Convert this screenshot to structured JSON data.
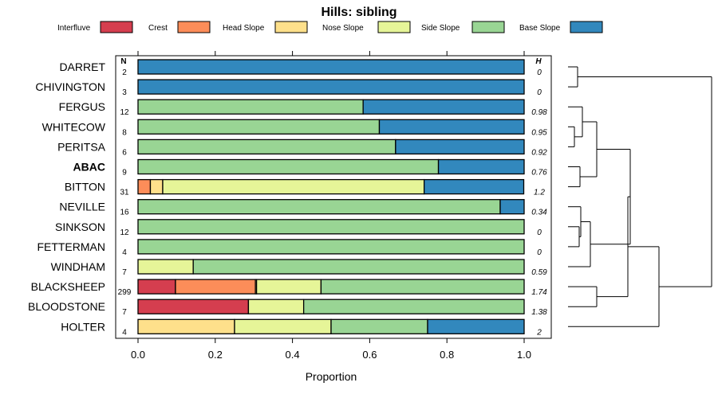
{
  "chart_data": {
    "type": "bar",
    "stacked": true,
    "orientation": "horizontal",
    "title": "Hills: sibling",
    "xlabel": "Proportion",
    "xlim": [
      0,
      1
    ],
    "xticks": [
      "0.0",
      "0.2",
      "0.4",
      "0.6",
      "0.8",
      "1.0"
    ],
    "n_header": "N",
    "h_header": "H",
    "legend_position": "top",
    "legend": [
      {
        "name": "Interfluve",
        "color": "#d53e4f"
      },
      {
        "name": "Crest",
        "color": "#fc8d59"
      },
      {
        "name": "Head Slope",
        "color": "#fee08b"
      },
      {
        "name": "Nose Slope",
        "color": "#e6f598"
      },
      {
        "name": "Side Slope",
        "color": "#99d594"
      },
      {
        "name": "Base Slope",
        "color": "#3288bd"
      }
    ],
    "rows": [
      {
        "name": "DARRET",
        "n": "2",
        "h": "0",
        "bold": false,
        "values": [
          0,
          0,
          0,
          0,
          0,
          1.0
        ]
      },
      {
        "name": "CHIVINGTON",
        "n": "3",
        "h": "0",
        "bold": false,
        "values": [
          0,
          0,
          0,
          0,
          0,
          1.0
        ]
      },
      {
        "name": "FERGUS",
        "n": "12",
        "h": "0.98",
        "bold": false,
        "values": [
          0,
          0,
          0,
          0,
          0.583,
          0.417
        ]
      },
      {
        "name": "WHITECOW",
        "n": "8",
        "h": "0.95",
        "bold": false,
        "values": [
          0,
          0,
          0,
          0,
          0.625,
          0.375
        ]
      },
      {
        "name": "PERITSA",
        "n": "6",
        "h": "0.92",
        "bold": false,
        "values": [
          0,
          0,
          0,
          0,
          0.667,
          0.333
        ]
      },
      {
        "name": "ABAC",
        "n": "9",
        "h": "0.76",
        "bold": true,
        "values": [
          0,
          0,
          0,
          0,
          0.778,
          0.222
        ]
      },
      {
        "name": "BITTON",
        "n": "31",
        "h": "1.2",
        "bold": false,
        "values": [
          0,
          0.032,
          0.032,
          0.677,
          0,
          0.258
        ]
      },
      {
        "name": "NEVILLE",
        "n": "16",
        "h": "0.34",
        "bold": false,
        "values": [
          0,
          0,
          0,
          0,
          0.938,
          0.062
        ]
      },
      {
        "name": "SINKSON",
        "n": "12",
        "h": "0",
        "bold": false,
        "values": [
          0,
          0,
          0,
          0,
          1.0,
          0
        ]
      },
      {
        "name": "FETTERMAN",
        "n": "4",
        "h": "0",
        "bold": false,
        "values": [
          0,
          0,
          0,
          0,
          1.0,
          0
        ]
      },
      {
        "name": "WINDHAM",
        "n": "7",
        "h": "0.59",
        "bold": false,
        "values": [
          0,
          0,
          0,
          0.143,
          0.857,
          0
        ]
      },
      {
        "name": "BLACKSHEEP",
        "n": "299",
        "h": "1.74",
        "bold": false,
        "values": [
          0.097,
          0.207,
          0.003,
          0.167,
          0.526,
          0
        ]
      },
      {
        "name": "BLOODSTONE",
        "n": "7",
        "h": "1.38",
        "bold": false,
        "values": [
          0.286,
          0,
          0,
          0.143,
          0.571,
          0
        ]
      },
      {
        "name": "HOLTER",
        "n": "4",
        "h": "2",
        "bold": false,
        "values": [
          0,
          0,
          0.25,
          0.25,
          0.25,
          0.25
        ]
      }
    ],
    "dendrogram_leaf_order": [
      "DARRET",
      "CHIVINGTON",
      "FERGUS",
      "WHITECOW",
      "PERITSA",
      "ABAC",
      "BITTON",
      "NEVILLE",
      "SINKSON",
      "FETTERMAN",
      "WINDHAM",
      "BLACKSHEEP",
      "BLOODSTONE",
      "HOLTER"
    ]
  }
}
